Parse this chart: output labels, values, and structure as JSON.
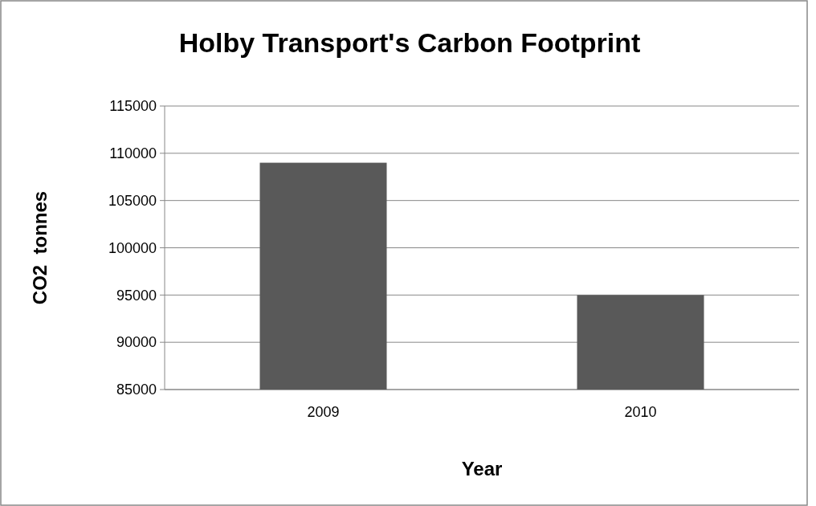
{
  "chart_data": {
    "type": "bar",
    "title": "Holby Transport's Carbon Footprint",
    "xlabel": "Year",
    "ylabel": "CO2  tonnes",
    "categories": [
      "2009",
      "2010"
    ],
    "values": [
      109000,
      95000
    ],
    "color": "#595959",
    "ylim": [
      85000,
      115000
    ],
    "yticks": [
      85000,
      90000,
      95000,
      100000,
      105000,
      110000,
      115000
    ],
    "grid": "y"
  }
}
